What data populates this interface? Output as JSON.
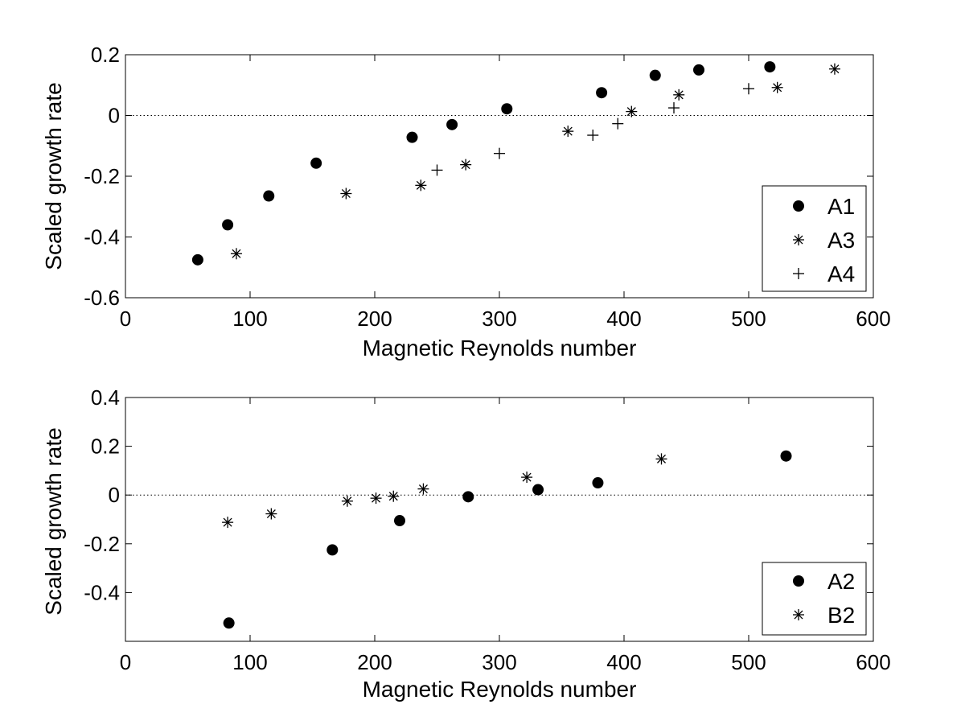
{
  "colors": {
    "background": "#ffffff",
    "axes": "#000000",
    "marker": "#000000"
  },
  "chart_data": [
    {
      "type": "scatter",
      "title": "",
      "xlabel": "Magnetic Reynolds number",
      "ylabel": "Scaled growth rate",
      "xlim": [
        0,
        600
      ],
      "ylim": [
        -0.6,
        0.2
      ],
      "xticks": [
        0,
        100,
        200,
        300,
        400,
        500,
        600
      ],
      "yticks": [
        -0.6,
        -0.4,
        -0.2,
        0,
        0.2
      ],
      "xtick_labels": [
        "0",
        "100",
        "200",
        "300",
        "400",
        "500",
        "600"
      ],
      "ytick_labels": [
        "-0.6",
        "-0.4",
        "-0.2",
        "0",
        "0.2"
      ],
      "reference_line": {
        "y": 0,
        "style": "dotted"
      },
      "grid": false,
      "legend_position": "lower-right",
      "series": [
        {
          "name": "A1",
          "marker": "filled-circle",
          "x": [
            58,
            82,
            115,
            153,
            230,
            262,
            306,
            382,
            425,
            460,
            517
          ],
          "y": [
            -0.475,
            -0.36,
            -0.265,
            -0.157,
            -0.072,
            -0.03,
            0.022,
            0.075,
            0.132,
            0.15,
            0.16
          ]
        },
        {
          "name": "A3",
          "marker": "asterisk",
          "x": [
            89,
            177,
            237,
            273,
            355,
            406,
            444,
            523,
            569
          ],
          "y": [
            -0.455,
            -0.257,
            -0.23,
            -0.162,
            -0.052,
            0.013,
            0.068,
            0.092,
            0.153
          ]
        },
        {
          "name": "A4",
          "marker": "plus",
          "x": [
            250,
            300,
            375,
            395,
            440,
            500
          ],
          "y": [
            -0.18,
            -0.125,
            -0.065,
            -0.027,
            0.025,
            0.088
          ]
        }
      ]
    },
    {
      "type": "scatter",
      "title": "",
      "xlabel": "Magnetic Reynolds number",
      "ylabel": "Scaled growth rate",
      "xlim": [
        0,
        600
      ],
      "ylim": [
        -0.6,
        0.4
      ],
      "xticks": [
        0,
        100,
        200,
        300,
        400,
        500,
        600
      ],
      "yticks": [
        -0.4,
        -0.2,
        0,
        0.2,
        0.4
      ],
      "xtick_labels": [
        "0",
        "100",
        "200",
        "300",
        "400",
        "500",
        "600"
      ],
      "ytick_labels": [
        "-0.4",
        "-0.2",
        "0",
        "0.2",
        "0.4"
      ],
      "reference_line": {
        "y": 0,
        "style": "dotted"
      },
      "grid": false,
      "legend_position": "lower-right",
      "series": [
        {
          "name": "A2",
          "marker": "filled-circle",
          "x": [
            83,
            166,
            220,
            275,
            331,
            379,
            530
          ],
          "y": [
            -0.525,
            -0.225,
            -0.105,
            -0.007,
            0.022,
            0.05,
            0.16
          ]
        },
        {
          "name": "B2",
          "marker": "asterisk",
          "x": [
            82,
            117,
            178,
            201,
            215,
            239,
            322,
            430
          ],
          "y": [
            -0.112,
            -0.077,
            -0.025,
            -0.013,
            -0.005,
            0.025,
            0.073,
            0.148
          ]
        }
      ]
    }
  ]
}
